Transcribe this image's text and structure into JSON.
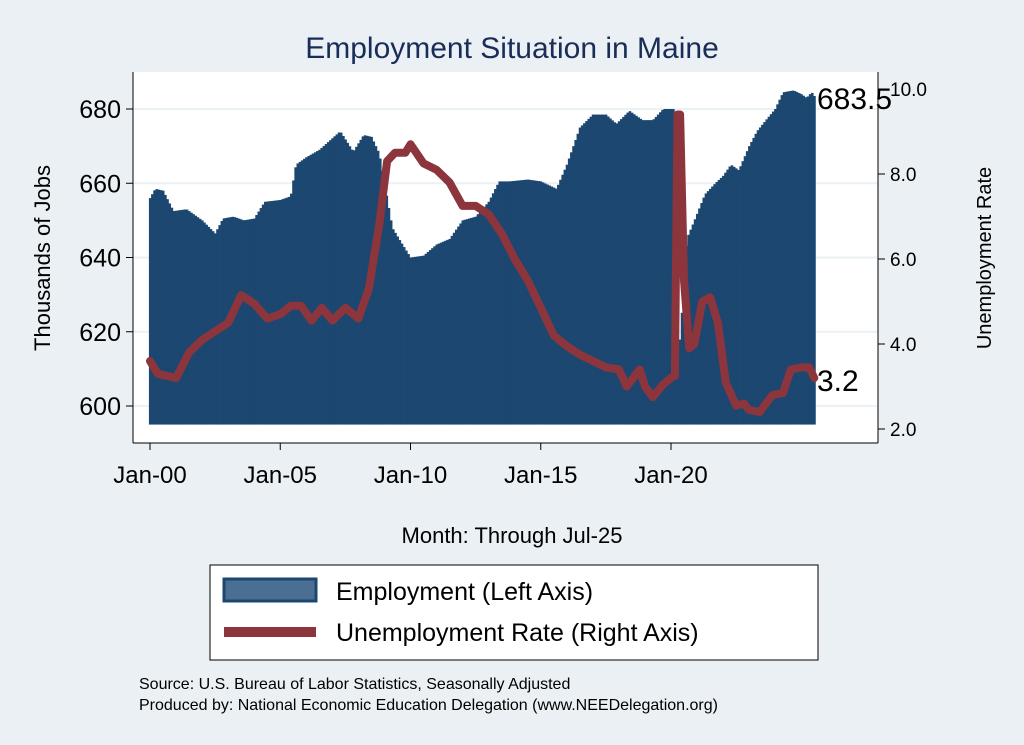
{
  "chart_data": {
    "type": "bar+line",
    "title": "Employment Situation in Maine",
    "xlabel": "Month: Through Jul-25",
    "ylabel_left": "Thousands of Jobs",
    "ylabel_right": "Unemployment Rate",
    "x_ticks": [
      {
        "x": 2000,
        "label": "Jan-00"
      },
      {
        "x": 2005,
        "label": "Jan-05"
      },
      {
        "x": 2010,
        "label": "Jan-10"
      },
      {
        "x": 2015,
        "label": "Jan-15"
      },
      {
        "x": 2020,
        "label": "Jan-20"
      }
    ],
    "left_ticks": [
      {
        "v": 600,
        "label": "600"
      },
      {
        "v": 620,
        "label": "620"
      },
      {
        "v": 640,
        "label": "640"
      },
      {
        "v": 660,
        "label": "660"
      },
      {
        "v": 680,
        "label": "680"
      }
    ],
    "right_ticks": [
      {
        "v": 2,
        "label": "2.0"
      },
      {
        "v": 4,
        "label": "4.0"
      },
      {
        "v": 6,
        "label": "6.0"
      },
      {
        "v": 8,
        "label": "8.0"
      },
      {
        "v": 10,
        "label": "10.0"
      }
    ],
    "xlim": [
      1999.7,
      2028.3
    ],
    "ylim_left": [
      590,
      691
    ],
    "ylim_right": [
      1.6,
      10.7
    ],
    "bar_base": 595,
    "grid": true,
    "series": [
      {
        "name": "Employment (Left Axis)",
        "axis": "left",
        "kind": "bar",
        "color": "#1c4770",
        "points": [
          [
            2000,
            656
          ],
          [
            2000.2,
            658.5
          ],
          [
            2000.5,
            658
          ],
          [
            2000.9,
            652.5
          ],
          [
            2001.4,
            653
          ],
          [
            2002.0,
            650
          ],
          [
            2002.5,
            646.5
          ],
          [
            2002.8,
            650.5
          ],
          [
            2003.2,
            651
          ],
          [
            2003.6,
            650
          ],
          [
            2004.0,
            650.5
          ],
          [
            2004.4,
            655
          ],
          [
            2005.0,
            655.5
          ],
          [
            2005.4,
            656.5
          ],
          [
            2005.6,
            665
          ],
          [
            2006.0,
            667
          ],
          [
            2006.5,
            669
          ],
          [
            2006.9,
            671.5
          ],
          [
            2007.3,
            674
          ],
          [
            2007.8,
            668.5
          ],
          [
            2008.2,
            673
          ],
          [
            2008.5,
            672.5
          ],
          [
            2008.8,
            668
          ],
          [
            2009.0,
            660
          ],
          [
            2009.3,
            648
          ],
          [
            2009.6,
            644.5
          ],
          [
            2010.0,
            640
          ],
          [
            2010.5,
            640.5
          ],
          [
            2011.0,
            643.5
          ],
          [
            2011.5,
            645
          ],
          [
            2012.0,
            650
          ],
          [
            2012.5,
            651
          ],
          [
            2013.0,
            655
          ],
          [
            2013.4,
            660.5
          ],
          [
            2013.8,
            660.5
          ],
          [
            2014.5,
            661
          ],
          [
            2015.0,
            660.5
          ],
          [
            2015.3,
            659.5
          ],
          [
            2015.6,
            658.5
          ],
          [
            2016.0,
            665
          ],
          [
            2016.5,
            675
          ],
          [
            2017.0,
            678.5
          ],
          [
            2017.5,
            678.5
          ],
          [
            2017.9,
            676
          ],
          [
            2018.4,
            679.5
          ],
          [
            2018.9,
            677
          ],
          [
            2019.3,
            677
          ],
          [
            2019.7,
            680
          ],
          [
            2020.1,
            680
          ],
          [
            2020.2,
            676
          ],
          [
            2020.3,
            615
          ],
          [
            2020.45,
            628
          ],
          [
            2020.6,
            645
          ],
          [
            2020.9,
            650
          ],
          [
            2021.3,
            657
          ],
          [
            2021.7,
            660
          ],
          [
            2022.0,
            662
          ],
          [
            2022.3,
            665
          ],
          [
            2022.6,
            663.5
          ],
          [
            2023.0,
            670
          ],
          [
            2023.3,
            674
          ],
          [
            2023.7,
            677.5
          ],
          [
            2024.0,
            680
          ],
          [
            2024.3,
            684.5
          ],
          [
            2024.7,
            685
          ],
          [
            2025.0,
            684
          ],
          [
            2025.2,
            683
          ],
          [
            2025.4,
            684.5
          ],
          [
            2025.5,
            683.5
          ]
        ]
      },
      {
        "name": "Unemployment Rate (Right Axis)",
        "axis": "right",
        "kind": "line",
        "color": "#8c353d",
        "points": [
          [
            2000,
            3.6
          ],
          [
            2000.3,
            3.3
          ],
          [
            2001.0,
            3.2
          ],
          [
            2001.5,
            3.8
          ],
          [
            2002.0,
            4.1
          ],
          [
            2002.5,
            4.3
          ],
          [
            2003.0,
            4.5
          ],
          [
            2003.5,
            5.15
          ],
          [
            2004.0,
            4.95
          ],
          [
            2004.5,
            4.6
          ],
          [
            2005.0,
            4.7
          ],
          [
            2005.4,
            4.9
          ],
          [
            2005.8,
            4.9
          ],
          [
            2006.2,
            4.55
          ],
          [
            2006.6,
            4.85
          ],
          [
            2007.0,
            4.55
          ],
          [
            2007.5,
            4.85
          ],
          [
            2008.0,
            4.6
          ],
          [
            2008.4,
            5.3
          ],
          [
            2008.8,
            6.8
          ],
          [
            2009.1,
            8.3
          ],
          [
            2009.4,
            8.5
          ],
          [
            2009.8,
            8.5
          ],
          [
            2010.0,
            8.7
          ],
          [
            2010.5,
            8.25
          ],
          [
            2011.0,
            8.1
          ],
          [
            2011.5,
            7.8
          ],
          [
            2012.0,
            7.25
          ],
          [
            2012.5,
            7.25
          ],
          [
            2013.0,
            7.05
          ],
          [
            2013.5,
            6.6
          ],
          [
            2014.0,
            6.0
          ],
          [
            2014.5,
            5.5
          ],
          [
            2015.0,
            4.85
          ],
          [
            2015.5,
            4.2
          ],
          [
            2016.0,
            3.95
          ],
          [
            2016.5,
            3.75
          ],
          [
            2017.0,
            3.6
          ],
          [
            2017.5,
            3.45
          ],
          [
            2018.0,
            3.4
          ],
          [
            2018.3,
            3.0
          ],
          [
            2018.8,
            3.4
          ],
          [
            2019.0,
            3.0
          ],
          [
            2019.3,
            2.75
          ],
          [
            2019.7,
            3.05
          ],
          [
            2020.0,
            3.2
          ],
          [
            2020.15,
            3.25
          ],
          [
            2020.25,
            9.4
          ],
          [
            2020.35,
            9.4
          ],
          [
            2020.5,
            5.5
          ],
          [
            2020.7,
            3.9
          ],
          [
            2020.9,
            4.0
          ],
          [
            2021.2,
            5.0
          ],
          [
            2021.5,
            5.1
          ],
          [
            2021.8,
            4.5
          ],
          [
            2022.1,
            3.1
          ],
          [
            2022.5,
            2.55
          ],
          [
            2022.8,
            2.6
          ],
          [
            2023.0,
            2.45
          ],
          [
            2023.4,
            2.4
          ],
          [
            2023.9,
            2.8
          ],
          [
            2024.3,
            2.85
          ],
          [
            2024.6,
            3.4
          ],
          [
            2025.0,
            3.45
          ],
          [
            2025.3,
            3.45
          ],
          [
            2025.5,
            3.2
          ]
        ]
      }
    ],
    "annotations": [
      {
        "series": 0,
        "label": "683.5"
      },
      {
        "series": 1,
        "label": "3.2"
      }
    ],
    "legend": {
      "position": "bottom",
      "entries": [
        "Employment (Left Axis)",
        "Unemployment Rate (Right Axis)"
      ]
    },
    "source": "Source: U.S. Bureau of Labor Statistics, Seasonally Adjusted",
    "produced_by": "Produced by: National Economic Education Delegation (www.NEEDelegation.org)"
  }
}
